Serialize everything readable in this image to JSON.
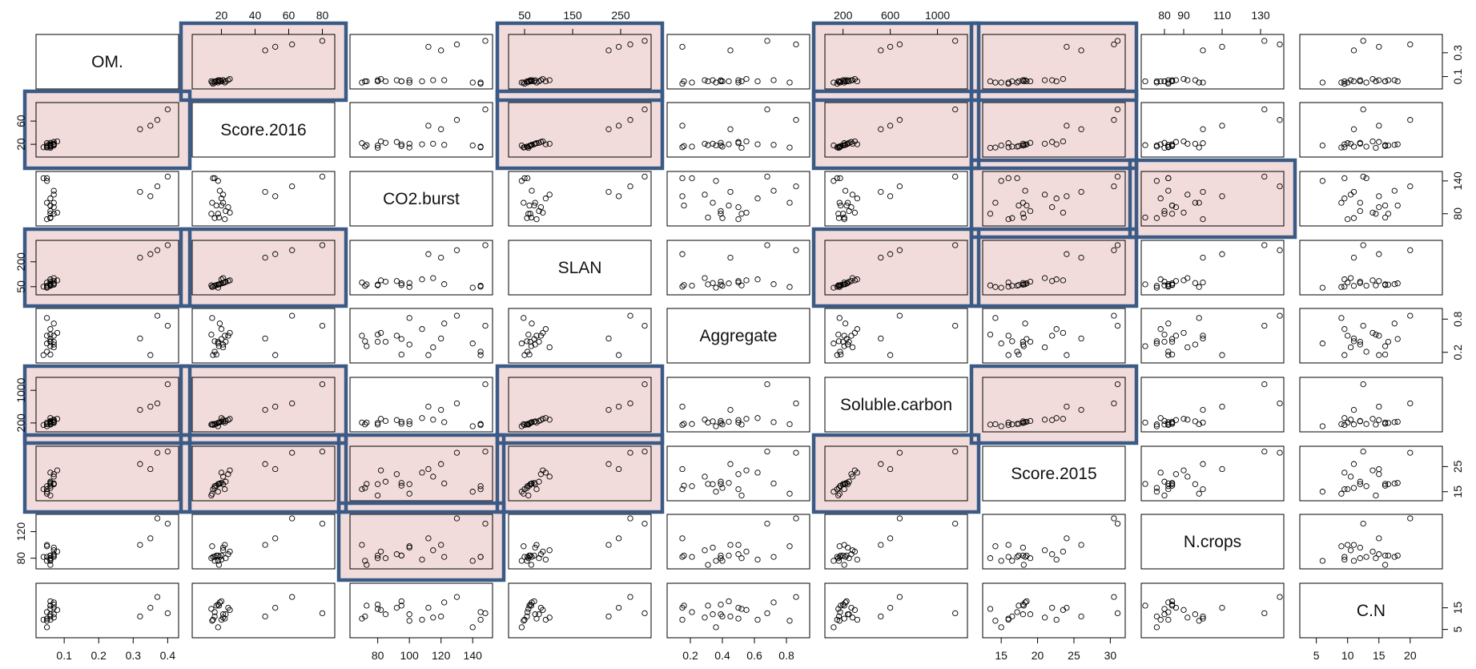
{
  "chart_data": {
    "type": "scatter",
    "title": "",
    "variables": [
      {
        "name": "OM.",
        "range": [
          0.03,
          0.42
        ],
        "ticks": [
          0.1,
          0.3
        ],
        "tick_labels": [
          "0.1",
          "0.3"
        ]
      },
      {
        "name": "Score.2016",
        "range": [
          5,
          85
        ],
        "ticks": [
          20,
          40,
          60,
          80
        ],
        "tick_labels": [
          "20",
          "40",
          "60",
          "80"
        ]
      },
      {
        "name": "CO2.burst",
        "range": [
          65,
          150
        ],
        "ticks": [
          80,
          100,
          120,
          140
        ],
        "tick_labels": [
          "80",
          "100",
          "120",
          "140"
        ]
      },
      {
        "name": "SLAN",
        "range": [
          25,
          305
        ],
        "ticks": [
          50,
          150,
          250
        ],
        "tick_labels": [
          "50",
          "150",
          "250"
        ]
      },
      {
        "name": "Aggregate",
        "range": [
          0.08,
          0.92
        ],
        "ticks": [
          0.2,
          0.4,
          0.6,
          0.8
        ],
        "tick_labels": [
          "0.2",
          "0.4",
          "0.6",
          "0.8"
        ]
      },
      {
        "name": "Soluble.carbon",
        "range": [
          80,
          1220
        ],
        "ticks": [
          200,
          600,
          1000
        ],
        "tick_labels": [
          "200",
          "600",
          "1000"
        ]
      },
      {
        "name": "Score.2015",
        "range": [
          13,
          31.5
        ],
        "ticks": [
          15,
          20,
          25,
          30
        ],
        "tick_labels": [
          "15",
          "20",
          "25",
          "30"
        ]
      },
      {
        "name": "N.crops",
        "range": [
          70,
          140
        ],
        "ticks": [
          80,
          90,
          110,
          130
        ],
        "tick_labels": [
          "80",
          "90",
          "110",
          "130"
        ]
      },
      {
        "name": "C.N",
        "range": [
          3,
          24.5
        ],
        "ticks": [
          5,
          10,
          15,
          20
        ],
        "tick_labels": [
          "5",
          "10",
          "15",
          "20"
        ]
      }
    ],
    "axis_ticks": {
      "top": [
        {
          "col": 1,
          "ticks": [
            20,
            40,
            60,
            80
          ]
        },
        {
          "col": 3,
          "ticks": [
            50,
            150,
            250
          ]
        },
        {
          "col": 5,
          "ticks": [
            200,
            600,
            1000
          ]
        },
        {
          "col": 7,
          "ticks": [
            80,
            90,
            110,
            130
          ]
        }
      ],
      "bottom": [
        {
          "col": 0,
          "ticks": [
            0.1,
            0.2,
            0.3,
            0.4
          ]
        },
        {
          "col": 2,
          "ticks": [
            80,
            100,
            120,
            140
          ]
        },
        {
          "col": 4,
          "ticks": [
            0.2,
            0.4,
            0.6,
            0.8
          ]
        },
        {
          "col": 6,
          "ticks": [
            15,
            20,
            25,
            30
          ]
        },
        {
          "col": 8,
          "ticks": [
            5,
            10,
            15,
            20
          ]
        }
      ],
      "left": [
        {
          "row": 1,
          "ticks": [
            20,
            60
          ]
        },
        {
          "row": 3,
          "ticks": [
            50,
            200
          ]
        },
        {
          "row": 5,
          "ticks": [
            200,
            1000
          ]
        },
        {
          "row": 7,
          "ticks": [
            80,
            120
          ]
        }
      ],
      "right": [
        {
          "row": 0,
          "ticks": [
            0.1,
            0.3
          ]
        },
        {
          "row": 2,
          "ticks": [
            80,
            140
          ]
        },
        {
          "row": 4,
          "ticks": [
            0.2,
            0.8
          ]
        },
        {
          "row": 6,
          "ticks": [
            15,
            25
          ]
        },
        {
          "row": 8,
          "ticks": [
            5,
            15
          ]
        }
      ]
    },
    "observations": [
      [
        0.06,
        14.0,
        80.0,
        58.0,
        0.52,
        160.0,
        13.5,
        80.0,
        14.5
      ],
      [
        0.05,
        14.5,
        100.0,
        48.0,
        0.82,
        170.0,
        14.2,
        98.0,
        9.0
      ],
      [
        0.04,
        15.0,
        145.0,
        50.0,
        0.15,
        150.0,
        16.0,
        82.0,
        9.5
      ],
      [
        0.06,
        16.0,
        72.0,
        55.0,
        0.4,
        165.0,
        16.5,
        76.0,
        11.0
      ],
      [
        0.05,
        16.0,
        145.0,
        56.0,
        0.21,
        175.0,
        17.2,
        82.0,
        13.0
      ],
      [
        0.06,
        17.0,
        95.0,
        60.0,
        0.16,
        180.0,
        17.4,
        84.0,
        16.0
      ],
      [
        0.07,
        18.0,
        80.0,
        62.0,
        0.39,
        200.0,
        18.0,
        84.0,
        16.5
      ],
      [
        0.06,
        18.5,
        73.0,
        64.0,
        0.31,
        210.0,
        18.1,
        70.0,
        16.0
      ],
      [
        0.07,
        19.0,
        122.0,
        65.0,
        0.72,
        220.0,
        18.3,
        82.0,
        17.5
      ],
      [
        0.06,
        20.0,
        95.0,
        70.0,
        0.44,
        230.0,
        18.5,
        84.0,
        18.0
      ],
      [
        0.07,
        21.0,
        100.0,
        72.0,
        0.34,
        240.0,
        18.0,
        96.0,
        12.0
      ],
      [
        0.05,
        22.0,
        70.0,
        75.0,
        0.5,
        210.0,
        16.0,
        100.0,
        10.0
      ],
      [
        0.06,
        22.5,
        85.0,
        80.0,
        0.39,
        250.0,
        19.0,
        80.0,
        12.0
      ],
      [
        0.07,
        24.0,
        92.0,
        84.0,
        0.5,
        270.0,
        22.0,
        86.0,
        15.0
      ],
      [
        0.08,
        25.0,
        82.0,
        88.0,
        0.55,
        300.0,
        23.5,
        90.0,
        14.0
      ],
      [
        0.06,
        20.0,
        108.0,
        94.0,
        0.62,
        320.0,
        22.6,
        78.0,
        9.5
      ],
      [
        0.07,
        21.0,
        115.0,
        102.0,
        0.29,
        280.0,
        21.0,
        92.0,
        10.5
      ],
      [
        0.32,
        46.0,
        120.0,
        225.0,
        0.45,
        520.0,
        26.0,
        100.0,
        11.0
      ],
      [
        0.35,
        52.0,
        112.0,
        246.0,
        0.15,
        600.0,
        24.0,
        110.0,
        15.0
      ],
      [
        0.37,
        62.0,
        130.0,
        270.0,
        0.86,
        680.0,
        30.5,
        140.0,
        20.0
      ],
      [
        0.4,
        80.0,
        148.0,
        300.0,
        0.68,
        1150.0,
        31.0,
        132.0,
        12.5
      ],
      [
        0.05,
        18.0,
        140.0,
        44.0,
        0.36,
        120.0,
        15.0,
        76.0,
        6.0
      ]
    ],
    "highlighted_panels": [
      {
        "row": 0,
        "cols": [
          1,
          3,
          5,
          6
        ]
      },
      {
        "row": 1,
        "cols": [
          0,
          3,
          5,
          6
        ]
      },
      {
        "row": 2,
        "cols": [
          6,
          7
        ]
      },
      {
        "row": 3,
        "cols": [
          0,
          1,
          5,
          6
        ]
      },
      {
        "row": 5,
        "cols": [
          0,
          1,
          3,
          6
        ]
      },
      {
        "row": 6,
        "cols": [
          0,
          1,
          2,
          3,
          5
        ]
      },
      {
        "row": 7,
        "cols": [
          2
        ]
      }
    ],
    "colors": {
      "highlight_fill": "#f2dcdb",
      "highlight_border": "#3b5a86",
      "points": "#000000",
      "panel_border": "#000000"
    },
    "grid": false,
    "legend": "none"
  }
}
